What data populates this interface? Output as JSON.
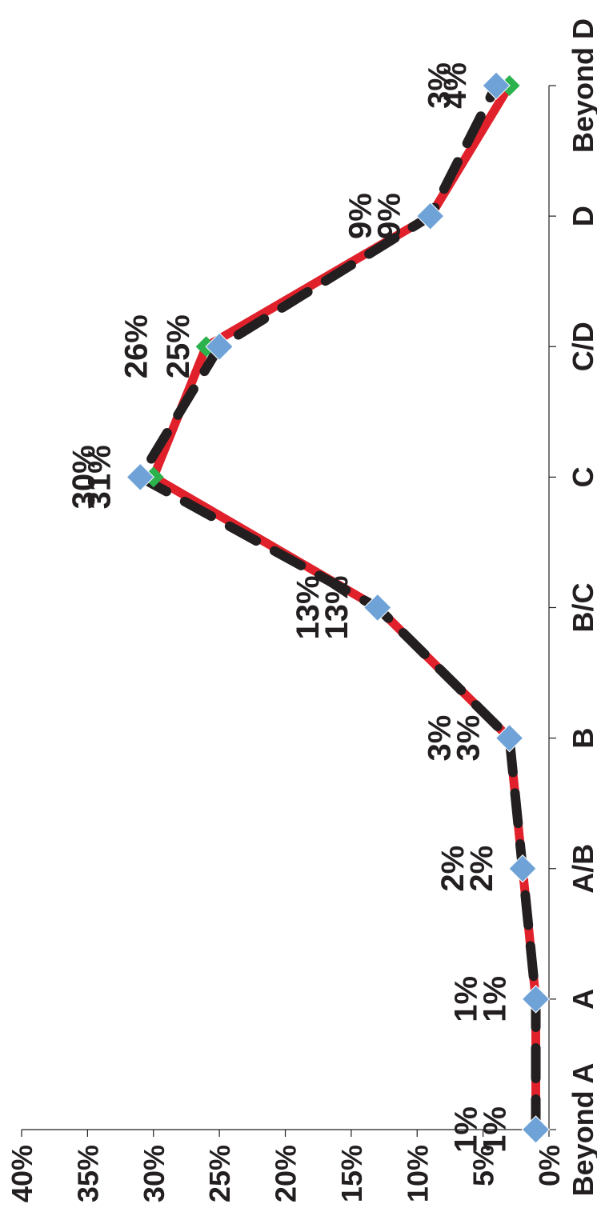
{
  "chart_data": {
    "type": "line",
    "orientation": "rotated-90-clockwise",
    "categories": [
      "Beyond A",
      "A",
      "A/B",
      "B",
      "B/C",
      "C",
      "C/D",
      "D",
      "Beyond D"
    ],
    "ylim": [
      0,
      40
    ],
    "yticks": [
      "0%",
      "5%",
      "10%",
      "15%",
      "20%",
      "25%",
      "30%",
      "35%",
      "40%"
    ],
    "grid": false,
    "series": [
      {
        "values": [
          1,
          1,
          2,
          3,
          13,
          30,
          26,
          9,
          3
        ],
        "labels": [
          "1%",
          "1%",
          "2%",
          "3%",
          "13%",
          "30%",
          "26%",
          "9%",
          "3%"
        ],
        "color": "#e0202a",
        "marker_color": "#2bb24c",
        "line_style": "solid"
      },
      {
        "values": [
          1,
          1,
          2,
          3,
          13,
          31,
          25,
          9,
          4
        ],
        "labels": [
          "1%",
          "1%",
          "2%",
          "3%",
          "13%",
          "31%",
          "25%",
          "9%",
          "4%"
        ],
        "color": "#231f20",
        "marker_color": "#6fa3d8",
        "line_style": "dashed"
      }
    ]
  }
}
